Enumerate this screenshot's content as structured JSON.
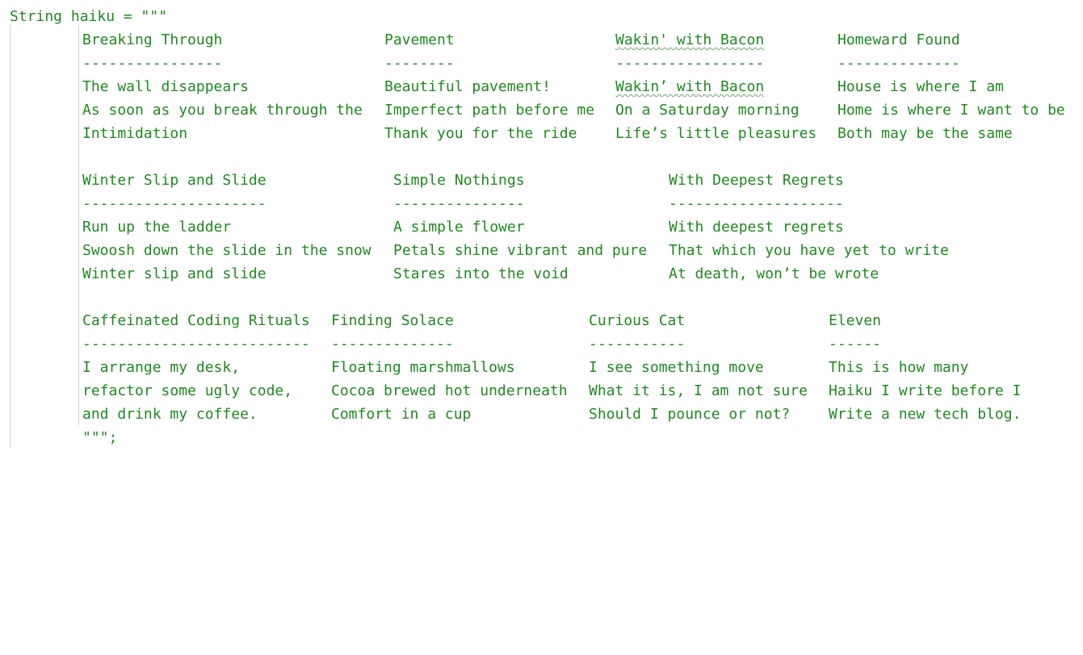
{
  "code": {
    "declaration": "String haiku = \"\"\"",
    "closing": "\"\"\";",
    "blocks": [
      {
        "rows": [
          [
            "Breaking Through",
            "Pavement",
            "Wakin' with Bacon",
            "Homeward Found"
          ],
          [
            "----------------",
            "--------",
            "-----------------",
            "--------------"
          ],
          [
            "The wall disappears",
            "Beautiful pavement!",
            "Wakin’ with Bacon",
            "House is where I am"
          ],
          [
            "As soon as you break through the",
            "Imperfect path before me",
            "On a Saturday morning",
            "Home is where I want to be"
          ],
          [
            "Intimidation",
            "Thank you for the ride",
            "Life’s little pleasures",
            "Both may be the same"
          ]
        ]
      },
      {
        "rows": [
          [
            "Winter Slip and Slide",
            "Simple Nothings",
            "With Deepest Regrets"
          ],
          [
            "---------------------",
            "---------------",
            "--------------------"
          ],
          [
            "Run up the ladder",
            "A simple flower",
            "With deepest regrets"
          ],
          [
            "Swoosh down the slide in the snow",
            "Petals shine vibrant and pure",
            "That which you have yet to write"
          ],
          [
            "Winter slip and slide",
            "Stares into the void",
            "At death, won’t be wrote"
          ]
        ]
      },
      {
        "rows": [
          [
            "Caffeinated Coding Rituals",
            "Finding Solace",
            "Curious Cat",
            "Eleven"
          ],
          [
            "--------------------------",
            "--------------",
            "-----------",
            "------"
          ],
          [
            "I arrange my desk,",
            "Floating marshmallows",
            "I see something move",
            "This is how many"
          ],
          [
            "refactor some ugly code,",
            "Cocoa brewed hot underneath",
            "What it is, I am not sure",
            "Haiku I write before I"
          ],
          [
            "and drink my coffee.",
            "Comfort in a cup",
            "Should I pounce or not?",
            "Write a new tech blog."
          ]
        ]
      }
    ]
  }
}
